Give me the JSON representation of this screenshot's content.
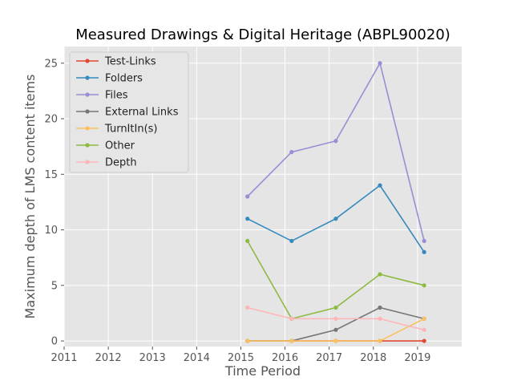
{
  "chart_data": {
    "type": "line",
    "title": "Measured Drawings & Digital Heritage (ABPL90020)",
    "xlabel": "Time Period",
    "ylabel": "Maximum depth of LMS content items",
    "xlim": [
      2011,
      2020
    ],
    "ylim": [
      -0.5,
      26.5
    ],
    "x_ticks": [
      2011,
      2012,
      2013,
      2014,
      2015,
      2016,
      2017,
      2018,
      2019
    ],
    "y_ticks": [
      0,
      5,
      10,
      15,
      20,
      25
    ],
    "grid": true,
    "legend_position": "top-left",
    "x": [
      2015.15,
      2016.15,
      2017.15,
      2018.15,
      2019.15
    ],
    "series": [
      {
        "name": "Test-Links",
        "color": "#E24A33",
        "values": [
          0,
          0,
          0,
          0,
          0
        ]
      },
      {
        "name": "Folders",
        "color": "#348ABD",
        "values": [
          11,
          9,
          11,
          14,
          8
        ]
      },
      {
        "name": "Files",
        "color": "#988ED5",
        "values": [
          13,
          17,
          18,
          25,
          9
        ]
      },
      {
        "name": "External Links",
        "color": "#777777",
        "values": [
          0,
          0,
          1,
          3,
          2
        ]
      },
      {
        "name": "TurnItIn(s)",
        "color": "#FBC15E",
        "values": [
          0,
          0,
          0,
          0,
          2
        ]
      },
      {
        "name": "Other",
        "color": "#8EBA42",
        "values": [
          9,
          2,
          3,
          6,
          5
        ]
      },
      {
        "name": "Depth",
        "color": "#FFB5B8",
        "values": [
          3,
          2,
          2,
          2,
          1
        ]
      }
    ]
  }
}
